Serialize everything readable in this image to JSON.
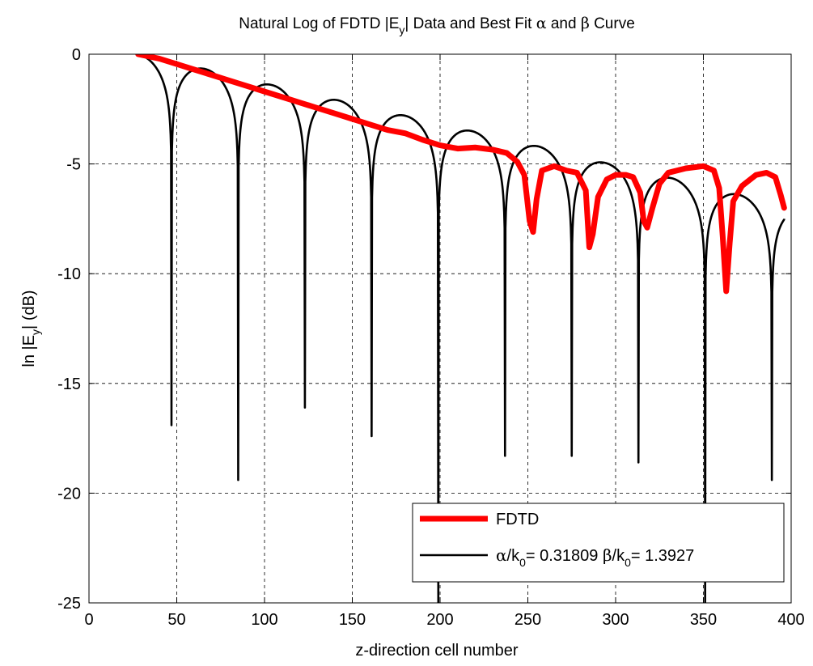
{
  "chart_data": {
    "type": "line",
    "title": {
      "parts": [
        {
          "text": "Natural Log of FDTD |E"
        },
        {
          "text": "y",
          "sub": true
        },
        {
          "text": "| Data and Best Fit "
        },
        {
          "text": "α",
          "greek": true
        },
        {
          "text": " and "
        },
        {
          "text": "β",
          "greek": true
        },
        {
          "text": " Curve"
        }
      ]
    },
    "xlabel": "z-direction cell number",
    "ylabel": {
      "parts": [
        {
          "text": "ln |E"
        },
        {
          "text": "y",
          "sub": true
        },
        {
          "text": "| (dB)"
        }
      ]
    },
    "xlim": [
      0,
      400
    ],
    "ylim": [
      -25,
      0
    ],
    "xticks": [
      0,
      50,
      100,
      150,
      200,
      250,
      300,
      350,
      400
    ],
    "yticks": [
      0,
      -5,
      -10,
      -15,
      -20,
      -25
    ],
    "grid": true,
    "legend_position": "bottom-right",
    "series": [
      {
        "name": "FDTD",
        "color": "#ff0000",
        "points": [
          [
            28,
            0
          ],
          [
            40,
            -0.2
          ],
          [
            50,
            -0.45
          ],
          [
            60,
            -0.7
          ],
          [
            70,
            -0.95
          ],
          [
            80,
            -1.2
          ],
          [
            90,
            -1.45
          ],
          [
            100,
            -1.7
          ],
          [
            110,
            -1.95
          ],
          [
            120,
            -2.2
          ],
          [
            130,
            -2.45
          ],
          [
            140,
            -2.7
          ],
          [
            150,
            -2.95
          ],
          [
            160,
            -3.2
          ],
          [
            170,
            -3.45
          ],
          [
            180,
            -3.6
          ],
          [
            190,
            -3.9
          ],
          [
            200,
            -4.15
          ],
          [
            210,
            -4.3
          ],
          [
            220,
            -4.25
          ],
          [
            230,
            -4.35
          ],
          [
            238,
            -4.5
          ],
          [
            244,
            -4.9
          ],
          [
            248,
            -5.5
          ],
          [
            251,
            -7.6
          ],
          [
            253,
            -8.1
          ],
          [
            255,
            -6.6
          ],
          [
            258,
            -5.3
          ],
          [
            265,
            -5.1
          ],
          [
            272,
            -5.3
          ],
          [
            278,
            -5.4
          ],
          [
            283,
            -6.2
          ],
          [
            285,
            -8.8
          ],
          [
            287,
            -8.2
          ],
          [
            290,
            -6.5
          ],
          [
            295,
            -5.7
          ],
          [
            300,
            -5.5
          ],
          [
            306,
            -5.5
          ],
          [
            310,
            -5.6
          ],
          [
            314,
            -6.3
          ],
          [
            316,
            -7.6
          ],
          [
            318,
            -7.9
          ],
          [
            321,
            -7.0
          ],
          [
            325,
            -5.9
          ],
          [
            330,
            -5.4
          ],
          [
            340,
            -5.2
          ],
          [
            350,
            -5.1
          ],
          [
            356,
            -5.3
          ],
          [
            359,
            -6.1
          ],
          [
            361,
            -8.3
          ],
          [
            363,
            -10.8
          ],
          [
            365,
            -8.6
          ],
          [
            367,
            -6.7
          ],
          [
            372,
            -6.0
          ],
          [
            380,
            -5.5
          ],
          [
            386,
            -5.4
          ],
          [
            391,
            -5.6
          ],
          [
            394,
            -6.4
          ],
          [
            396,
            -7.0
          ]
        ]
      },
      {
        "name": "α/k0= 0.31809  β/k0= 1.3927",
        "color": "#000000",
        "nulls": [
          {
            "x": 47,
            "depth": -16.9
          },
          {
            "x": 85,
            "depth": -19.4
          },
          {
            "x": 123,
            "depth": -16.1
          },
          {
            "x": 161,
            "depth": -17.4
          },
          {
            "x": 199,
            "depth": -25
          },
          {
            "x": 237,
            "depth": -18.3
          },
          {
            "x": 275,
            "depth": -18.3
          },
          {
            "x": 313,
            "depth": -18.6
          },
          {
            "x": 351,
            "depth": -25
          },
          {
            "x": 389,
            "depth": -19.4
          }
        ],
        "x_start": 28,
        "x_end": 396,
        "y_start": 0,
        "y_end": -7.5,
        "envelope": [
          [
            28,
            0
          ],
          [
            66,
            -0.67
          ],
          [
            104,
            -1.4
          ],
          [
            142,
            -2.1
          ],
          [
            180,
            -2.8
          ],
          [
            218,
            -3.5
          ],
          [
            256,
            -4.2
          ],
          [
            294,
            -4.95
          ],
          [
            332,
            -5.65
          ],
          [
            370,
            -6.4
          ],
          [
            396,
            -6.9
          ]
        ]
      }
    ],
    "legend": {
      "entries": [
        {
          "label": "FDTD"
        },
        {
          "label_parts": [
            {
              "text": "α",
              "greek": true
            },
            {
              "text": "/k"
            },
            {
              "text": "0",
              "sub": true
            },
            {
              "text": "= 0.31809  "
            },
            {
              "text": "β",
              "greek": true
            },
            {
              "text": "/k"
            },
            {
              "text": "0",
              "sub": true
            },
            {
              "text": "= 1.3927"
            }
          ]
        }
      ]
    }
  }
}
